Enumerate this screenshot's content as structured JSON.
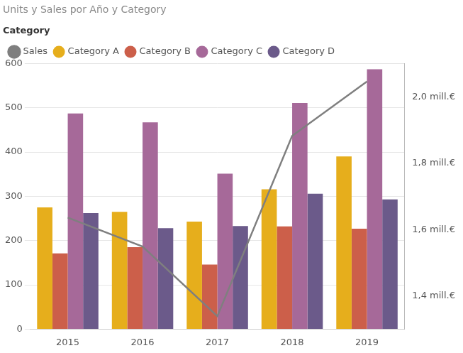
{
  "chart_data": {
    "type": "bar",
    "title": "Units y Sales por Año y Category",
    "legend_title": "Category",
    "categories": [
      "2015",
      "2016",
      "2017",
      "2018",
      "2019"
    ],
    "series": [
      {
        "name": "Category A",
        "color": "#E6AE1C",
        "values": [
          275,
          265,
          243,
          316,
          390
        ]
      },
      {
        "name": "Category B",
        "color": "#CC5F4A",
        "values": [
          171,
          185,
          146,
          232,
          227
        ]
      },
      {
        "name": "Category C",
        "color": "#A66999",
        "values": [
          487,
          467,
          351,
          511,
          587
        ]
      },
      {
        "name": "Category D",
        "color": "#6B5A8A",
        "values": [
          262,
          228,
          233,
          306,
          293
        ]
      },
      {
        "name": "Sales",
        "color": "#7F7F7F",
        "type": "line",
        "axis": "y2",
        "values": [
          1636000,
          1549000,
          1339000,
          1882000,
          2046000
        ]
      }
    ],
    "ylim": [
      0,
      600
    ],
    "yticks": [
      0,
      100,
      200,
      300,
      400,
      500,
      600
    ],
    "y2lim": [
      1300000,
      2100000
    ],
    "y2ticks": [
      {
        "value": 1400000,
        "label": "1,4 mill.€"
      },
      {
        "value": 1600000,
        "label": "1,6 mill.€"
      },
      {
        "value": 1800000,
        "label": "1,8 mill.€"
      },
      {
        "value": 2000000,
        "label": "2,0 mill.€"
      }
    ],
    "grid": true,
    "legend": "top-left"
  }
}
